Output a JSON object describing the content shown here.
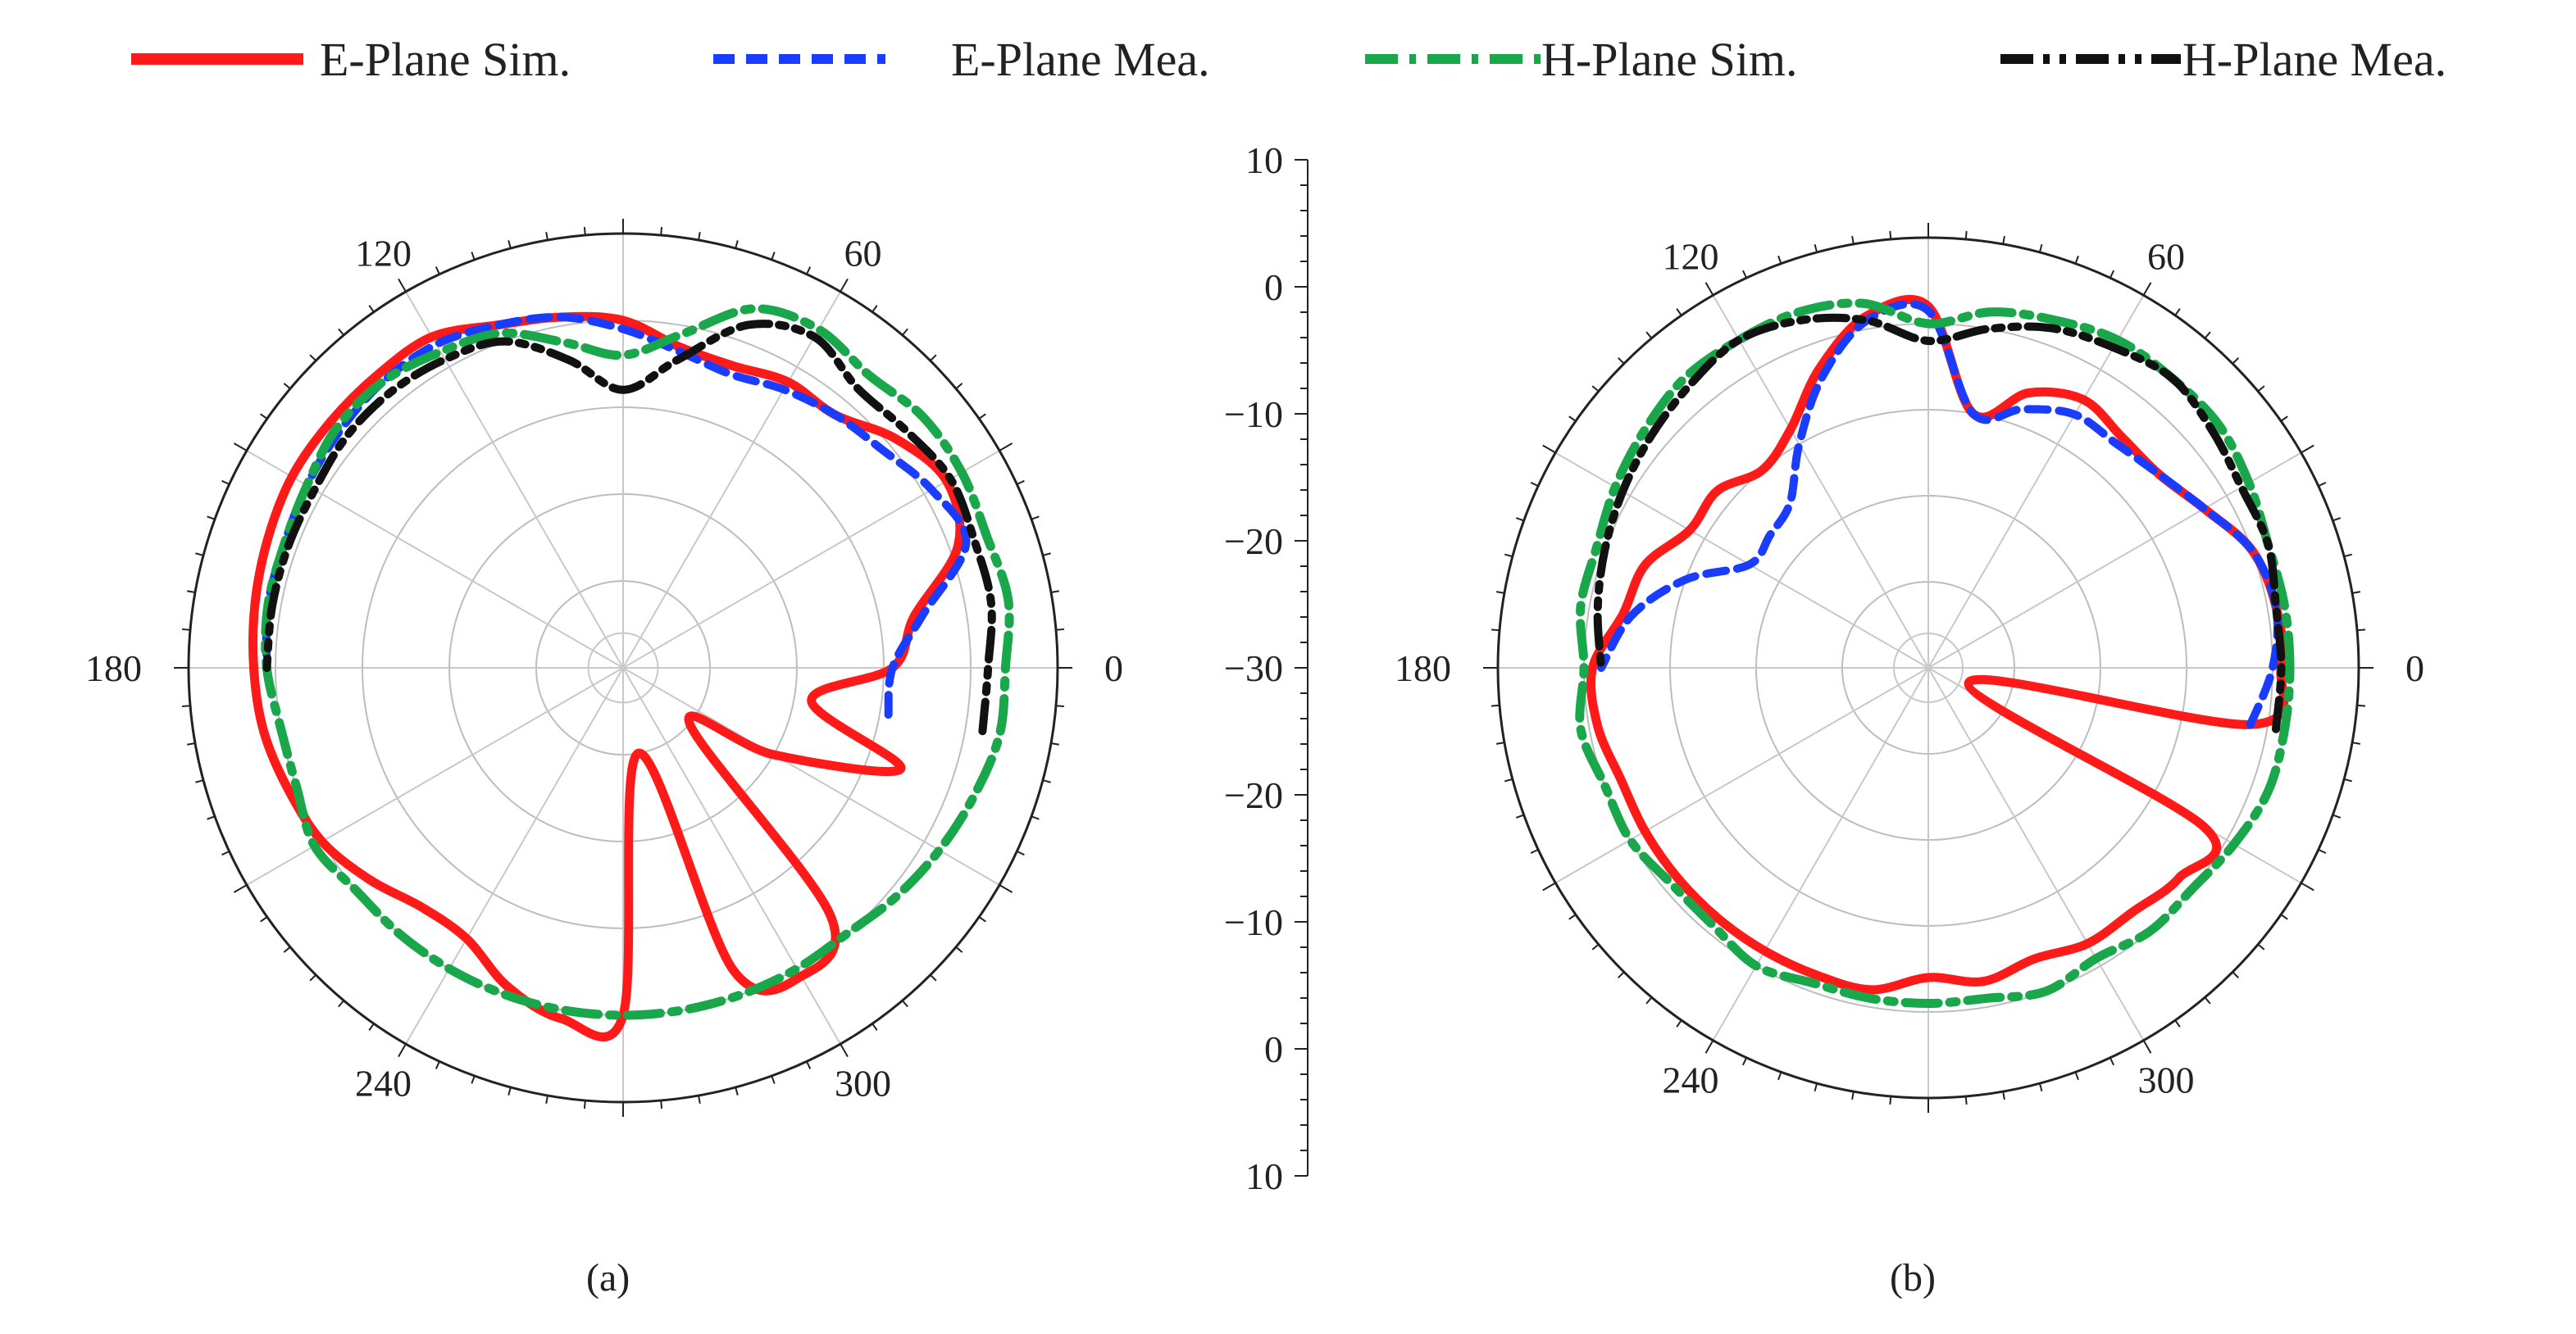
{
  "legend": [
    {
      "label": "E-Plane Sim.",
      "color": "#ff1a1a",
      "dash": "solid"
    },
    {
      "label": "E-Plane Mea.",
      "color": "#1a3cff",
      "dash": "dash"
    },
    {
      "label": "H-Plane Sim.",
      "color": "#1aa64b",
      "dash": "dashdot"
    },
    {
      "label": "H-Plane Mea.",
      "color": "#111111",
      "dash": "dashdotdot"
    }
  ],
  "chart_data": [
    {
      "type": "polar-line",
      "panel_label": "(a)",
      "r_min": -40,
      "r_max": 10,
      "r_ticks": [
        -30,
        -20,
        -10,
        0
      ],
      "angle_labels": [
        "0",
        "60",
        "120",
        "180",
        "240",
        "300"
      ],
      "angles_deg": [
        0,
        10,
        20,
        30,
        40,
        50,
        60,
        70,
        80,
        90,
        100,
        110,
        120,
        130,
        140,
        150,
        160,
        170,
        180,
        190,
        200,
        210,
        220,
        230,
        240,
        250,
        260,
        270,
        280,
        290,
        300,
        310,
        320,
        330,
        340,
        350
      ],
      "series": [
        {
          "name": "E-Plane Sim.",
          "values": [
            -9,
            -6,
            1,
            3,
            1,
            -2,
            -2,
            -3,
            -2.5,
            0,
            1,
            2,
            4,
            4,
            4,
            4,
            3.5,
            3,
            2.5,
            2,
            1,
            0,
            -2,
            -4,
            -4,
            -1,
            1,
            0,
            -30,
            -3,
            1,
            -3,
            -30,
            -20,
            -6,
            -18
          ]
        },
        {
          "name": "E-Plane Mea.",
          "values": [
            -9,
            -5,
            2,
            1,
            -1,
            -2,
            -3,
            -4,
            -3,
            -1,
            1,
            2,
            3,
            3,
            2.5,
            2,
            1.5,
            1.5,
            1,
            null,
            null,
            null,
            null,
            null,
            null,
            null,
            null,
            null,
            null,
            null,
            null,
            null,
            null,
            null,
            null,
            -9
          ]
        },
        {
          "name": "H-Plane Sim.",
          "values": [
            4,
            5,
            4.5,
            5,
            5,
            4,
            5,
            4,
            -1,
            -4,
            -2,
            1,
            2,
            3,
            3,
            2,
            1.5,
            1.5,
            1,
            0,
            0,
            1,
            0,
            0,
            0,
            0,
            0,
            0,
            0,
            0,
            0,
            0,
            1,
            2,
            3,
            4
          ]
        },
        {
          "name": "H-Plane Mea.",
          "values": [
            2,
            3,
            3,
            3.5,
            2.5,
            2,
            4,
            2,
            -4,
            -8,
            -4,
            0,
            1,
            1.5,
            1.5,
            1,
            1,
            1,
            1,
            null,
            null,
            null,
            null,
            null,
            null,
            null,
            null,
            null,
            null,
            null,
            null,
            null,
            null,
            null,
            null,
            2
          ]
        }
      ]
    },
    {
      "type": "polar-line",
      "panel_label": "(b)",
      "r_min": -40,
      "r_max": 10,
      "r_ticks": [
        -30,
        -20,
        -10,
        0
      ],
      "angle_labels": [
        "0",
        "60",
        "120",
        "180",
        "240",
        "300"
      ],
      "angles_deg": [
        0,
        10,
        20,
        30,
        40,
        50,
        60,
        70,
        80,
        90,
        100,
        110,
        120,
        130,
        140,
        150,
        160,
        170,
        180,
        190,
        200,
        210,
        220,
        230,
        240,
        250,
        260,
        270,
        280,
        290,
        300,
        310,
        320,
        330,
        340,
        350
      ],
      "series": [
        {
          "name": "E-Plane Sim.",
          "values": [
            1,
            1,
            0,
            -3,
            -5,
            -5,
            -4,
            -6,
            -10,
            2,
            1.5,
            -3,
            -8,
            -10,
            -8,
            -8,
            -5,
            -4,
            -1,
            -1,
            -2,
            -2,
            -2,
            -2,
            -2,
            -2,
            -2,
            -4,
            -3,
            -4,
            -3,
            -3,
            -2,
            -3,
            -35,
            -2
          ]
        },
        {
          "name": "E-Plane Mea.",
          "values": [
            0,
            1,
            0,
            -3,
            -5,
            -6,
            -6,
            -8,
            -10,
            1.5,
            1,
            -4,
            -10,
            -15,
            -16,
            -16,
            -10,
            -5,
            -2,
            null,
            null,
            null,
            null,
            null,
            null,
            null,
            null,
            null,
            null,
            null,
            null,
            null,
            null,
            null,
            null,
            -2
          ]
        },
        {
          "name": "H-Plane Sim.",
          "values": [
            2,
            2,
            2,
            3,
            4,
            4,
            4,
            3,
            2,
            0,
            3,
            4,
            4,
            4,
            3,
            2,
            1,
            1,
            0,
            1,
            0,
            0,
            -1,
            -1,
            0,
            -1,
            -1,
            -1,
            -1,
            0,
            -1,
            0,
            0,
            1,
            2,
            2
          ]
        },
        {
          "name": "H-Plane Mea.",
          "values": [
            1,
            1,
            2,
            2,
            3,
            4,
            3,
            2,
            0,
            -2,
            1,
            3,
            4,
            3,
            2,
            1,
            0,
            -1,
            -2,
            null,
            null,
            null,
            null,
            null,
            null,
            null,
            null,
            null,
            null,
            null,
            null,
            null,
            null,
            null,
            null,
            1
          ]
        }
      ],
      "scale": {
        "label_values": [
          "10",
          "0",
          "−10",
          "−20",
          "−30",
          "−20",
          "−10",
          "0",
          "10"
        ]
      }
    }
  ]
}
